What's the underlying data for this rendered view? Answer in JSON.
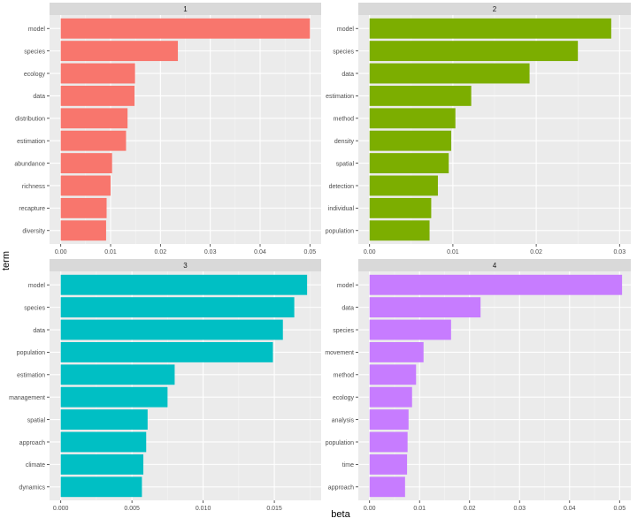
{
  "chart_data": {
    "type": "bar",
    "orientation": "horizontal",
    "layout": "facet-grid 2x2",
    "xlabel": "term",
    "ylabel": "beta",
    "grid": true,
    "legend": "none",
    "panels": [
      {
        "strip": "1",
        "color": "#F8766D",
        "categories": [
          "model",
          "species",
          "ecology",
          "data",
          "distribution",
          "estimation",
          "abundance",
          "richness",
          "recapture",
          "diversity"
        ],
        "values": [
          0.05,
          0.0235,
          0.0149,
          0.0148,
          0.0134,
          0.0131,
          0.0103,
          0.01,
          0.0092,
          0.0091
        ],
        "ylim": [
          0,
          0.05
        ],
        "ticks": [
          0.0,
          0.01,
          0.02,
          0.03,
          0.04,
          0.05
        ],
        "tick_labels": [
          "0.00",
          "0.01",
          "0.02",
          "0.03",
          "0.04",
          "0.05"
        ]
      },
      {
        "strip": "2",
        "color": "#7CAE00",
        "categories": [
          "model",
          "species",
          "data",
          "estimation",
          "method",
          "density",
          "spatial",
          "detection",
          "individual",
          "population"
        ],
        "values": [
          0.029,
          0.025,
          0.0192,
          0.0122,
          0.0103,
          0.0098,
          0.0095,
          0.0082,
          0.0074,
          0.0072
        ],
        "ylim": [
          0,
          0.03
        ],
        "ticks": [
          0.0,
          0.01,
          0.02,
          0.03
        ],
        "tick_labels": [
          "0.00",
          "0.01",
          "0.02",
          "0.03"
        ]
      },
      {
        "strip": "3",
        "color": "#00BFC4",
        "categories": [
          "model",
          "species",
          "data",
          "population",
          "estimation",
          "management",
          "spatial",
          "approach",
          "climate",
          "dynamics"
        ],
        "values": [
          0.0173,
          0.0164,
          0.0156,
          0.0149,
          0.008,
          0.0075,
          0.0061,
          0.006,
          0.0058,
          0.0057
        ],
        "ylim": [
          0,
          0.0175
        ],
        "ticks": [
          0.0,
          0.005,
          0.01,
          0.015
        ],
        "tick_labels": [
          "0.000",
          "0.005",
          "0.010",
          "0.015"
        ]
      },
      {
        "strip": "4",
        "color": "#C77CFF",
        "categories": [
          "model",
          "data",
          "species",
          "movement",
          "method",
          "ecology",
          "analysis",
          "population",
          "time",
          "approach"
        ],
        "values": [
          0.0505,
          0.0222,
          0.0163,
          0.0108,
          0.0093,
          0.0085,
          0.0078,
          0.0076,
          0.0075,
          0.0071
        ],
        "ylim": [
          0,
          0.05
        ],
        "ticks": [
          0.0,
          0.01,
          0.02,
          0.03,
          0.04,
          0.05
        ],
        "tick_labels": [
          "0.00",
          "0.01",
          "0.02",
          "0.03",
          "0.04",
          "0.05"
        ]
      }
    ]
  }
}
